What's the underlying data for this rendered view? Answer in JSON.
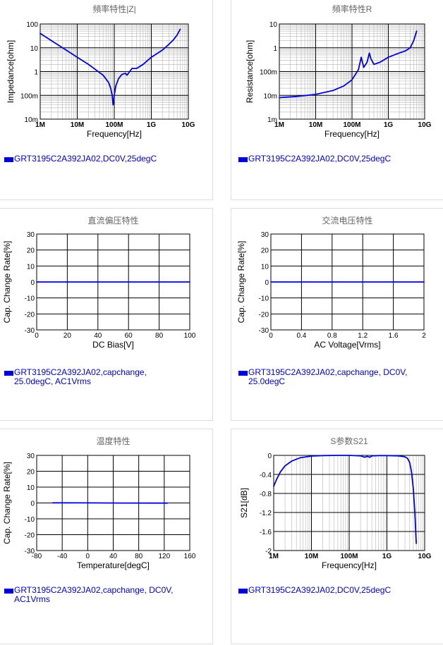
{
  "colors": {
    "series": "#0000dd",
    "legend_text": "#0000cc",
    "grid_major": "#000000",
    "grid_minor": "#c0c0c0"
  },
  "panels": [
    {
      "title": "頻率特性|Z|",
      "legend": "GRT3195C2A392JA02,DC0V,25degC",
      "chart_data": {
        "type": "line",
        "title": "頻率特性|Z|",
        "xlabel": "Frequency[Hz]",
        "ylabel": "Impedance[ohm]",
        "xscale": "log",
        "yscale": "log",
        "xlim": [
          1000000.0,
          10000000000.0
        ],
        "ylim": [
          0.01,
          100
        ],
        "grid": true,
        "xticks": [
          1000000.0,
          10000000.0,
          100000000.0,
          1000000000.0,
          10000000000.0
        ],
        "xticklabels": [
          "1M",
          "10M",
          "100M",
          "1G",
          "10G"
        ],
        "yticks": [
          0.01,
          0.1,
          1,
          10,
          100
        ],
        "yticklabels": [
          "10m",
          "100m",
          "1",
          "10",
          "100"
        ],
        "series": [
          {
            "name": "GRT3195C2A392JA02,DC0V,25degC",
            "x": [
              1000000.0,
              2000000.0,
              5000000.0,
              10000000.0,
              20000000.0,
              50000000.0,
              70000000.0,
              80000000.0,
              88000000.0,
              93000000.0,
              100000000.0,
              110000000.0,
              130000000.0,
              160000000.0,
              200000000.0,
              220000000.0,
              260000000.0,
              300000000.0,
              400000000.0,
              600000000.0,
              1000000000.0,
              2000000000.0,
              3000000000.0,
              4000000000.0,
              5000000000.0,
              6000000000.0
            ],
            "y": [
              40,
              20,
              8,
              4,
              2,
              0.7,
              0.35,
              0.2,
              0.1,
              0.04,
              0.1,
              0.25,
              0.5,
              0.75,
              0.85,
              0.7,
              1.0,
              1.35,
              1.35,
              2,
              4,
              8,
              14,
              22,
              35,
              60
            ]
          }
        ]
      }
    },
    {
      "title": "頻率特性R",
      "legend": "GRT3195C2A392JA02,DC0V,25degC",
      "chart_data": {
        "type": "line",
        "title": "頻率特性R",
        "xlabel": "Frequency[Hz]",
        "ylabel": "Resistance[ohm]",
        "xscale": "log",
        "yscale": "log",
        "xlim": [
          1000000.0,
          10000000000.0
        ],
        "ylim": [
          0.001,
          10
        ],
        "grid": true,
        "xticks": [
          1000000.0,
          10000000.0,
          100000000.0,
          1000000000.0,
          10000000000.0
        ],
        "xticklabels": [
          "1M",
          "10M",
          "100M",
          "1G",
          "10G"
        ],
        "yticks": [
          0.001,
          0.01,
          0.1,
          1,
          10
        ],
        "yticklabels": [
          "1m",
          "10m",
          "100m",
          "1",
          "10"
        ],
        "series": [
          {
            "name": "GRT3195C2A392JA02,DC0V,25degC",
            "x": [
              1000000.0,
              3000000.0,
              10000000.0,
              30000000.0,
              60000000.0,
              100000000.0,
              150000000.0,
              180000000.0,
              210000000.0,
              260000000.0,
              300000000.0,
              330000000.0,
              400000000.0,
              600000000.0,
              1000000000.0,
              2000000000.0,
              3000000000.0,
              4000000000.0,
              5000000000.0,
              6000000000.0
            ],
            "y": [
              0.008,
              0.009,
              0.011,
              0.016,
              0.025,
              0.045,
              0.12,
              0.4,
              0.15,
              0.25,
              0.6,
              0.35,
              0.2,
              0.25,
              0.4,
              0.6,
              0.75,
              1.0,
              2.0,
              5.0
            ]
          }
        ]
      }
    },
    {
      "title": "直流偏压特性",
      "legend": "GRT3195C2A392JA02,capchange,\n25.0degC, AC1Vrms",
      "chart_data": {
        "type": "line",
        "title": "直流偏压特性",
        "xlabel": "DC Bias[V]",
        "ylabel": "Cap. Change Rate[%]",
        "xlim": [
          0,
          100
        ],
        "ylim": [
          -30,
          30
        ],
        "grid": true,
        "xticks": [
          0,
          20,
          40,
          60,
          80,
          100
        ],
        "yticks": [
          -30,
          -20,
          -10,
          0,
          10,
          20,
          30
        ],
        "series": [
          {
            "name": "GRT3195C2A392JA02,capchange, 25.0degC, AC1Vrms",
            "x": [
              0,
              100
            ],
            "y": [
              0,
              0
            ]
          }
        ]
      }
    },
    {
      "title": "交流电压特性",
      "legend": "GRT3195C2A392JA02,capchange, DC0V,\n25.0degC",
      "chart_data": {
        "type": "line",
        "title": "交流电压特性",
        "xlabel": "AC Voltage[Vrms]",
        "ylabel": "Cap. Change Rate[%]",
        "xlim": [
          0,
          2
        ],
        "ylim": [
          -30,
          30
        ],
        "grid": true,
        "xticks": [
          0,
          0.4,
          0.8,
          1.2,
          1.6,
          2
        ],
        "yticks": [
          -30,
          -20,
          -10,
          0,
          10,
          20,
          30
        ],
        "series": [
          {
            "name": "GRT3195C2A392JA02,capchange, DC0V, 25.0degC",
            "x": [
              0,
              2
            ],
            "y": [
              0,
              0
            ]
          }
        ]
      }
    },
    {
      "title": "温度特性",
      "legend": "GRT3195C2A392JA02,capchange, DC0V,\nAC1Vrms",
      "chart_data": {
        "type": "line",
        "title": "温度特性",
        "xlabel": "Temperature[degC]",
        "ylabel": "Cap. Change Rate[%]",
        "xlim": [
          -80,
          160
        ],
        "ylim": [
          -30,
          30
        ],
        "grid": true,
        "xticks": [
          -80,
          -40,
          0,
          40,
          80,
          120,
          160
        ],
        "yticks": [
          -30,
          -20,
          -10,
          0,
          10,
          20,
          30
        ],
        "series": [
          {
            "name": "GRT3195C2A392JA02,capchange, DC0V, AC1Vrms",
            "x": [
              -55,
              0,
              25,
              60,
              125
            ],
            "y": [
              0.1,
              0.05,
              0,
              -0.05,
              -0.1
            ]
          }
        ]
      }
    },
    {
      "title": "S参数S21",
      "legend": "GRT3195C2A392JA02,DC0V,25degC",
      "chart_data": {
        "type": "line",
        "title": "S参数S21",
        "xlabel": "Frequency[Hz]",
        "ylabel": "S21[dB]",
        "xscale": "log",
        "xlim": [
          1000000.0,
          10000000000.0
        ],
        "ylim": [
          -2,
          0
        ],
        "grid": true,
        "xticks": [
          1000000.0,
          10000000.0,
          100000000.0,
          1000000000.0,
          10000000000.0
        ],
        "xticklabels": [
          "1M",
          "10M",
          "100M",
          "1G",
          "10G"
        ],
        "yticks": [
          -2,
          -1.6,
          -1.2,
          -0.8,
          -0.4,
          0
        ],
        "yticklabels": [
          "-2",
          "-1.6",
          "-1.2",
          "-0.8",
          "-0.4",
          "0"
        ],
        "series": [
          {
            "name": "GRT3195C2A392JA02,DC0V,25degC",
            "x": [
              1000000.0,
              1200000.0,
              1500000.0,
              2000000.0,
              3000000.0,
              5000000.0,
              10000000.0,
              20000000.0,
              50000000.0,
              100000000.0,
              200000000.0,
              260000000.0,
              300000000.0,
              350000000.0,
              400000000.0,
              600000000.0,
              1000000000.0,
              2000000000.0,
              3000000000.0,
              3500000000.0,
              4000000000.0,
              4500000000.0,
              5000000000.0,
              5500000000.0,
              6000000000.0
            ],
            "y": [
              -0.65,
              -0.5,
              -0.35,
              -0.22,
              -0.12,
              -0.05,
              -0.015,
              -0.005,
              0,
              0,
              -0.01,
              -0.04,
              -0.02,
              -0.04,
              -0.01,
              -0.005,
              -0.005,
              -0.01,
              -0.03,
              -0.06,
              -0.15,
              -0.35,
              -0.7,
              -1.2,
              -1.85
            ]
          }
        ]
      }
    }
  ]
}
